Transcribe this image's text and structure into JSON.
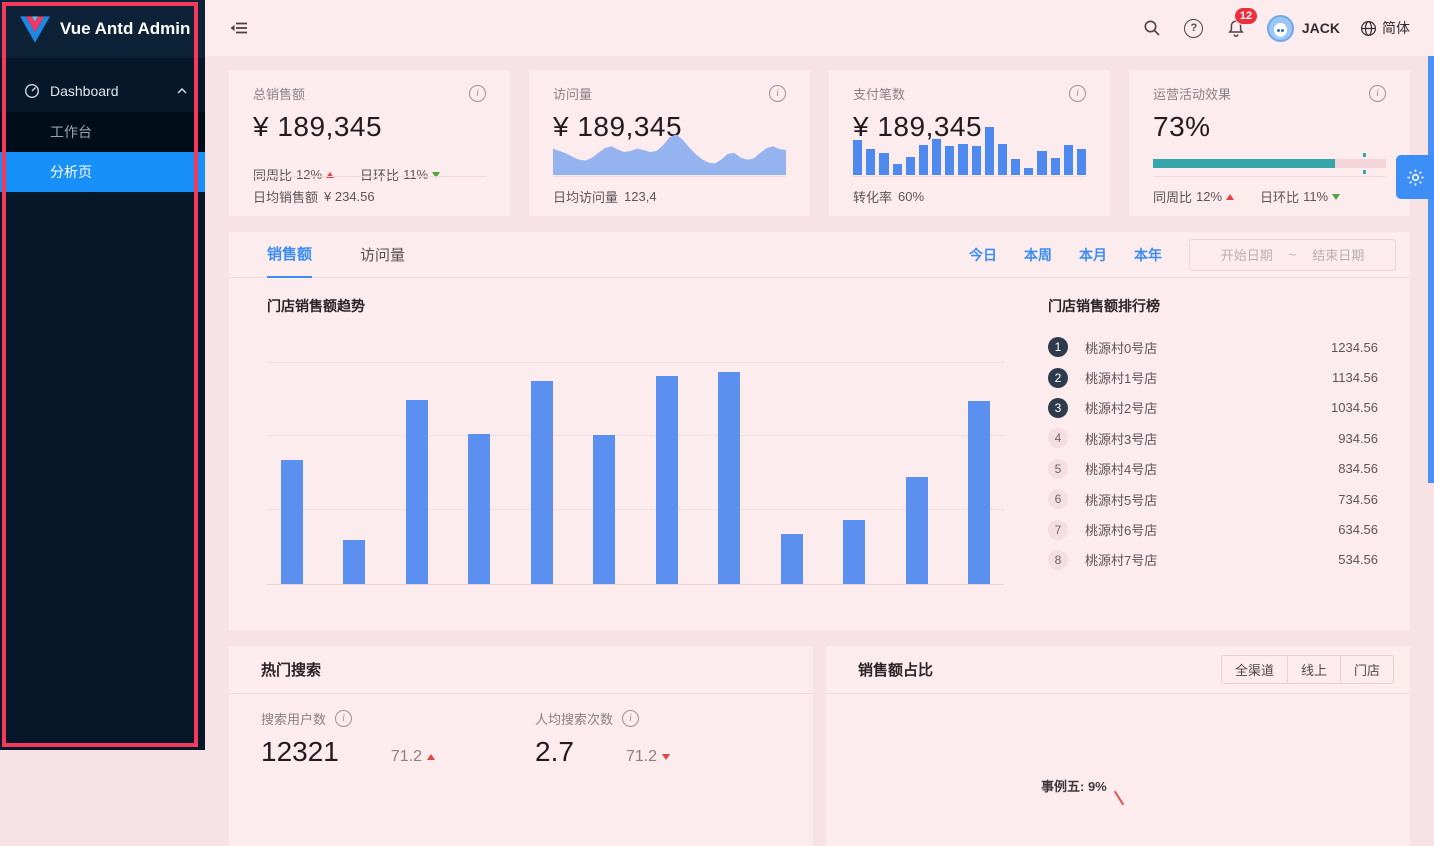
{
  "colors": {
    "accent_blue": "#1790fa",
    "bar_blue": "#5b90f0",
    "area_blue": "#95b3ef",
    "teal": "#37a7ab",
    "up_red": "#e04540",
    "down_green": "#52a33e",
    "annotation_red": "#f5395a",
    "sidebar_bg": "#051729",
    "badge_red": "#ee2f3e"
  },
  "icons": {
    "info_glyph": "i",
    "question_glyph": "?",
    "date_separator": "~"
  },
  "sidebar": {
    "brand": "Vue Antd Admin",
    "dashboard_label": "Dashboard",
    "items": [
      {
        "label": "工作台"
      },
      {
        "label": "分析页"
      }
    ]
  },
  "header": {
    "bell_badge": "12",
    "username": "JACK",
    "language": "简体"
  },
  "stats": {
    "total_sales": {
      "title": "总销售额",
      "value": "¥ 189,345",
      "wow_label": "同周比",
      "wow_value": "12%",
      "dod_label": "日环比",
      "dod_value": "11%",
      "footer_label": "日均销售额",
      "footer_value": "¥ 234.56"
    },
    "visits": {
      "title": "访问量",
      "value": "¥ 189,345",
      "footer_label": "日均访问量",
      "footer_value": "123,4"
    },
    "payments": {
      "title": "支付笔数",
      "value": "¥ 189,345",
      "footer_label": "转化率",
      "footer_value": "60%"
    },
    "activity": {
      "title": "运营活动效果",
      "value": "73%",
      "wow_label": "同周比",
      "wow_value": "12%",
      "dod_label": "日环比",
      "dod_value": "11%"
    }
  },
  "main_card": {
    "tabs": [
      {
        "label": "销售额"
      },
      {
        "label": "访问量"
      }
    ],
    "quick_ranges": [
      "今日",
      "本周",
      "本月",
      "本年"
    ],
    "date_start_placeholder": "开始日期",
    "date_end_placeholder": "结束日期",
    "chart_title": "门店销售额趋势",
    "ranking_title": "门店销售额排行榜",
    "ranking": [
      {
        "rank": "1",
        "name": "桃源村0号店",
        "value": "1234.56"
      },
      {
        "rank": "2",
        "name": "桃源村1号店",
        "value": "1134.56"
      },
      {
        "rank": "3",
        "name": "桃源村2号店",
        "value": "1034.56"
      },
      {
        "rank": "4",
        "name": "桃源村3号店",
        "value": "934.56"
      },
      {
        "rank": "5",
        "name": "桃源村4号店",
        "value": "834.56"
      },
      {
        "rank": "6",
        "name": "桃源村5号店",
        "value": "734.56"
      },
      {
        "rank": "7",
        "name": "桃源村6号店",
        "value": "634.56"
      },
      {
        "rank": "8",
        "name": "桃源村7号店",
        "value": "534.56"
      }
    ]
  },
  "bottom_left": {
    "title": "热门搜索",
    "stats": [
      {
        "label": "搜索用户数",
        "value": "12321",
        "delta": "71.2",
        "direction": "up"
      },
      {
        "label": "人均搜索次数",
        "value": "2.7",
        "delta": "71.2",
        "direction": "down"
      }
    ]
  },
  "bottom_right": {
    "title": "销售额占比",
    "filters": [
      "全渠道",
      "线上",
      "门店"
    ],
    "pie_label": "事例五: 9%"
  },
  "chart_data": [
    {
      "name": "visits_mini_area",
      "type": "area",
      "values": [
        55,
        50,
        45,
        38,
        32,
        30,
        36,
        46,
        56,
        60,
        53,
        48,
        50,
        55,
        52,
        48,
        50,
        62,
        78,
        85,
        74,
        58,
        44,
        33,
        26,
        24,
        32,
        44,
        46,
        36,
        32,
        34,
        46,
        56,
        60,
        54,
        52
      ]
    },
    {
      "name": "payments_mini_bar",
      "type": "bar",
      "values": [
        72,
        55,
        45,
        22,
        38,
        62,
        75,
        60,
        65,
        60,
        100,
        65,
        33,
        15,
        50,
        35,
        62,
        55
      ]
    },
    {
      "name": "store_sales_trend",
      "type": "bar",
      "title": "门店销售额趋势",
      "values": [
        503,
        178,
        746,
        608,
        825,
        604,
        845,
        863,
        202,
        259,
        436,
        744
      ],
      "ylim": [
        0,
        1000
      ],
      "gridlines": [
        300,
        600,
        900
      ]
    },
    {
      "name": "activity_progress",
      "type": "progress",
      "percent": 73,
      "fill_percent": 78,
      "target_percent": 90
    }
  ]
}
